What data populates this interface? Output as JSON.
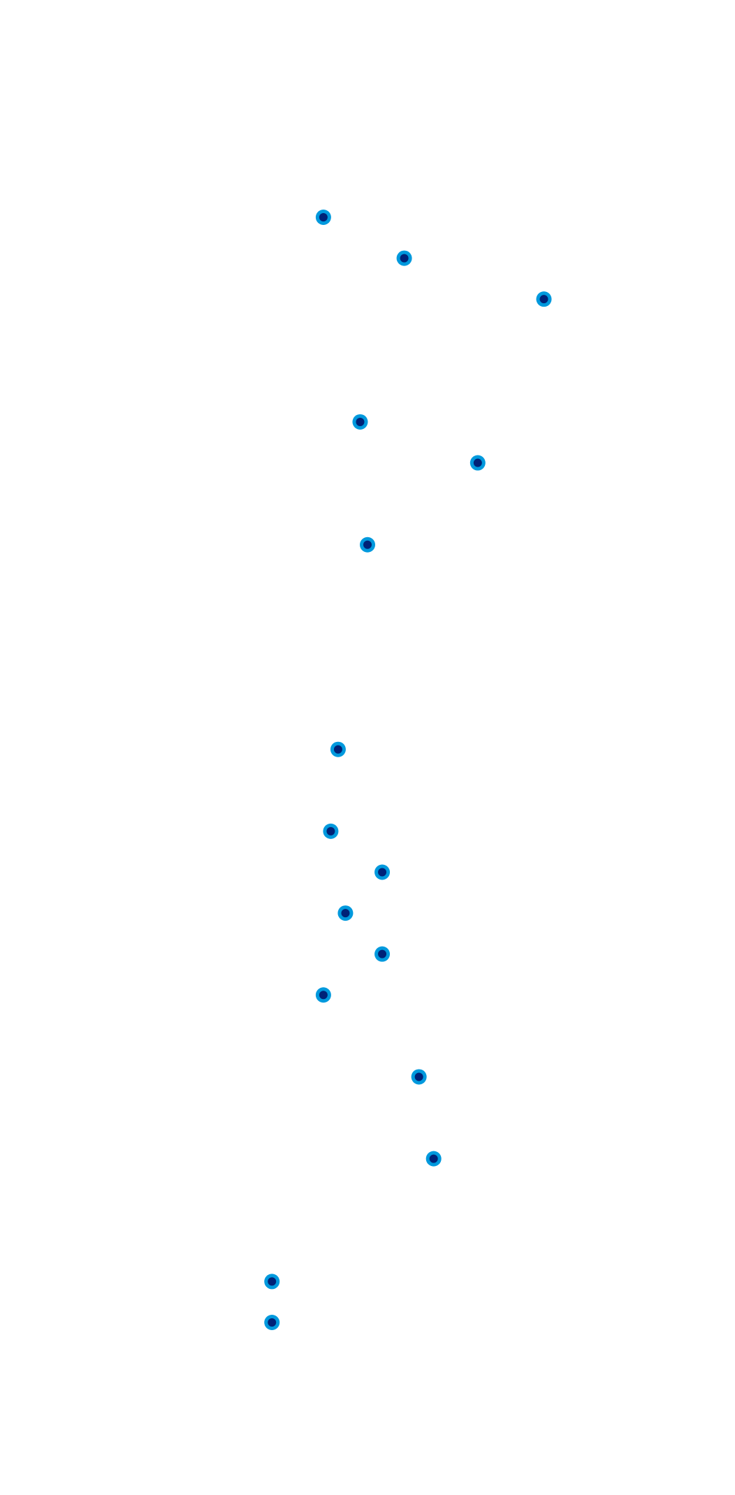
{
  "chart_data": {
    "type": "scatter",
    "grid": false,
    "legend": "none",
    "colors": {
      "point_outer": "#0099dd",
      "point_inner": "#002277"
    },
    "x": [
      0.44,
      0.55,
      0.74,
      0.49,
      0.65,
      0.5,
      0.46,
      0.45,
      0.52,
      0.47,
      0.52,
      0.44,
      0.57,
      0.59,
      0.37,
      0.37
    ],
    "y": [
      29,
      28,
      27,
      24,
      23,
      21,
      16,
      14,
      13,
      12,
      11,
      10,
      8,
      6,
      3,
      2
    ],
    "points": [
      {
        "x": 0.44,
        "y": 29
      },
      {
        "x": 0.55,
        "y": 28
      },
      {
        "x": 0.74,
        "y": 27
      },
      {
        "x": 0.49,
        "y": 24
      },
      {
        "x": 0.65,
        "y": 23
      },
      {
        "x": 0.5,
        "y": 21
      },
      {
        "x": 0.46,
        "y": 16
      },
      {
        "x": 0.45,
        "y": 14
      },
      {
        "x": 0.52,
        "y": 13
      },
      {
        "x": 0.47,
        "y": 12
      },
      {
        "x": 0.52,
        "y": 11
      },
      {
        "x": 0.44,
        "y": 10
      },
      {
        "x": 0.57,
        "y": 8
      },
      {
        "x": 0.59,
        "y": 6
      },
      {
        "x": 0.37,
        "y": 3
      },
      {
        "x": 0.37,
        "y": 2
      }
    ],
    "xlim": [
      0,
      1
    ],
    "ylim": [
      0,
      30
    ]
  }
}
